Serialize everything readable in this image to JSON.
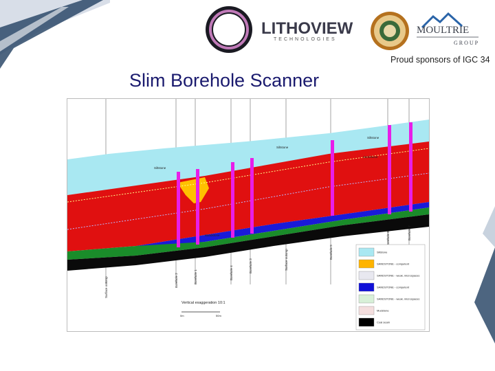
{
  "header": {
    "logo_brand_name": "LITHOVIEW",
    "logo_brand_sub": "TECHNOLOGIES",
    "sponsor_brand_name": "MOULTRIE",
    "sponsor_brand_group": "GROUP",
    "sponsor_text": "Proud sponsors of IGC 34",
    "title": "Slim Borehole Scanner"
  },
  "figure": {
    "vertical_exaggeration": "Vertical exaggeration 10:1",
    "scale_start": "0m",
    "scale_end": "50m",
    "unit_labels": [
      "Siltstone",
      "Siltstone",
      "Sandstone",
      "Siltstone",
      "Sandstone"
    ],
    "borehole_labels": [
      "Surface outcrop",
      "Borehole 2",
      "Borehole 1",
      "Borehole 4",
      "Borehole 3",
      "Surface outcrop",
      "Borehole 5",
      "Borehole 6",
      "Borehole 7"
    ],
    "legend": [
      {
        "label": "Siltstone",
        "color": "#a9e8f2"
      },
      {
        "label": "SANDSTONE - competent",
        "color": "#ffb400"
      },
      {
        "label": "SANDSTONE - weak, microspaces",
        "color": "#e8e8f0"
      },
      {
        "label": "SANDSTONE - competent",
        "color": "#1010d8"
      },
      {
        "label": "SANDSTONE - weak, microspaces",
        "color": "#d8f0d8"
      },
      {
        "label": "Mudstone",
        "color": "#f4dede"
      },
      {
        "label": "Coal seam",
        "color": "#000000"
      }
    ],
    "colors": {
      "sky_siltstone": "#a9e8f2",
      "red_sandstone": "#e01010",
      "yellow_sandstone": "#ffc000",
      "blue_sandstone": "#1a1ad8",
      "green_layer": "#1a8c2a",
      "coal": "#0a0a0a",
      "borehole": "#e81ee8"
    }
  }
}
